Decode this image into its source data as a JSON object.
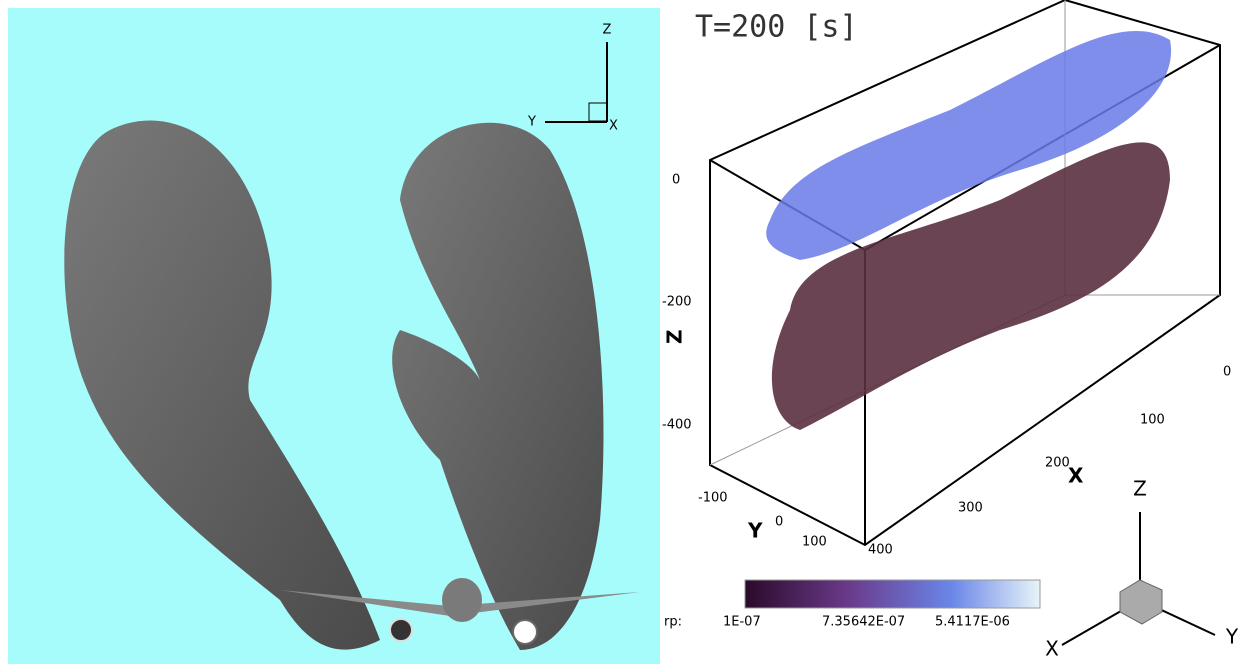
{
  "left_panel": {
    "axes_triad": {
      "z": "Z",
      "y": "Y",
      "x": "X"
    }
  },
  "right_panel": {
    "time_label": "T=200 [s]",
    "z_axis": {
      "label": "Z",
      "ticks": [
        "0",
        "-200",
        "-400"
      ]
    },
    "x_axis": {
      "label": "X",
      "ticks": [
        "0",
        "100",
        "200",
        "300",
        "400"
      ]
    },
    "y_axis": {
      "label": "Y",
      "ticks": [
        "-100",
        "0",
        "100"
      ]
    },
    "colorbar": {
      "variable": "rp:",
      "labels": [
        "1E-07",
        "7.35642E-07",
        "5.4117E-06"
      ]
    },
    "orientation_triad": {
      "z": "Z",
      "x": "X",
      "y": "Y"
    }
  }
}
